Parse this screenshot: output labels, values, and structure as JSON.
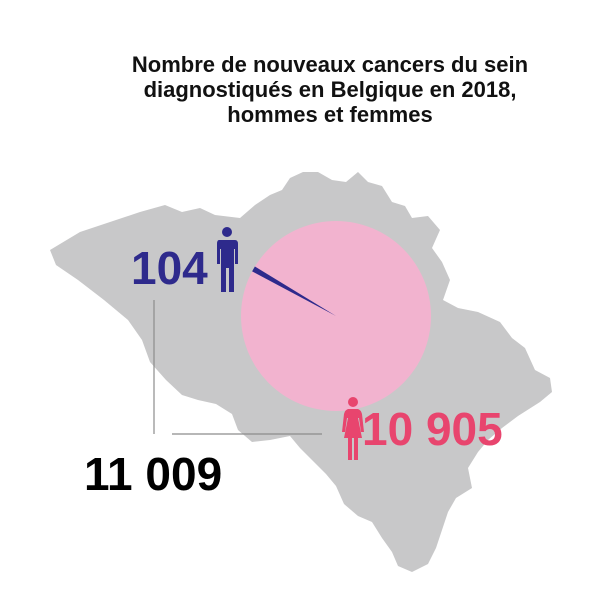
{
  "chart_data": {
    "type": "pie",
    "title_lines": [
      "Nombre de nouveaux cancers du sein",
      "diagnostiqués en Belgique en 2018,",
      "hommes et femmes"
    ],
    "slices": [
      {
        "key": "men",
        "icon": "man-icon",
        "value": 104,
        "label": "104",
        "color": "#2e2a8c"
      },
      {
        "key": "women",
        "icon": "woman-icon",
        "value": 10905,
        "label": "10 905",
        "color": "#e8456e",
        "fill": "#f2b3cf"
      }
    ],
    "total": 11009,
    "total_label": "11 009",
    "background_map": "belgium-map"
  },
  "colors": {
    "map": "#c8c8c9",
    "men": "#2e2a8c",
    "women_label": "#e8456e",
    "women_fill": "#f2b3cf",
    "total_text": "#000000",
    "leader_line": "#8c8c8c"
  }
}
